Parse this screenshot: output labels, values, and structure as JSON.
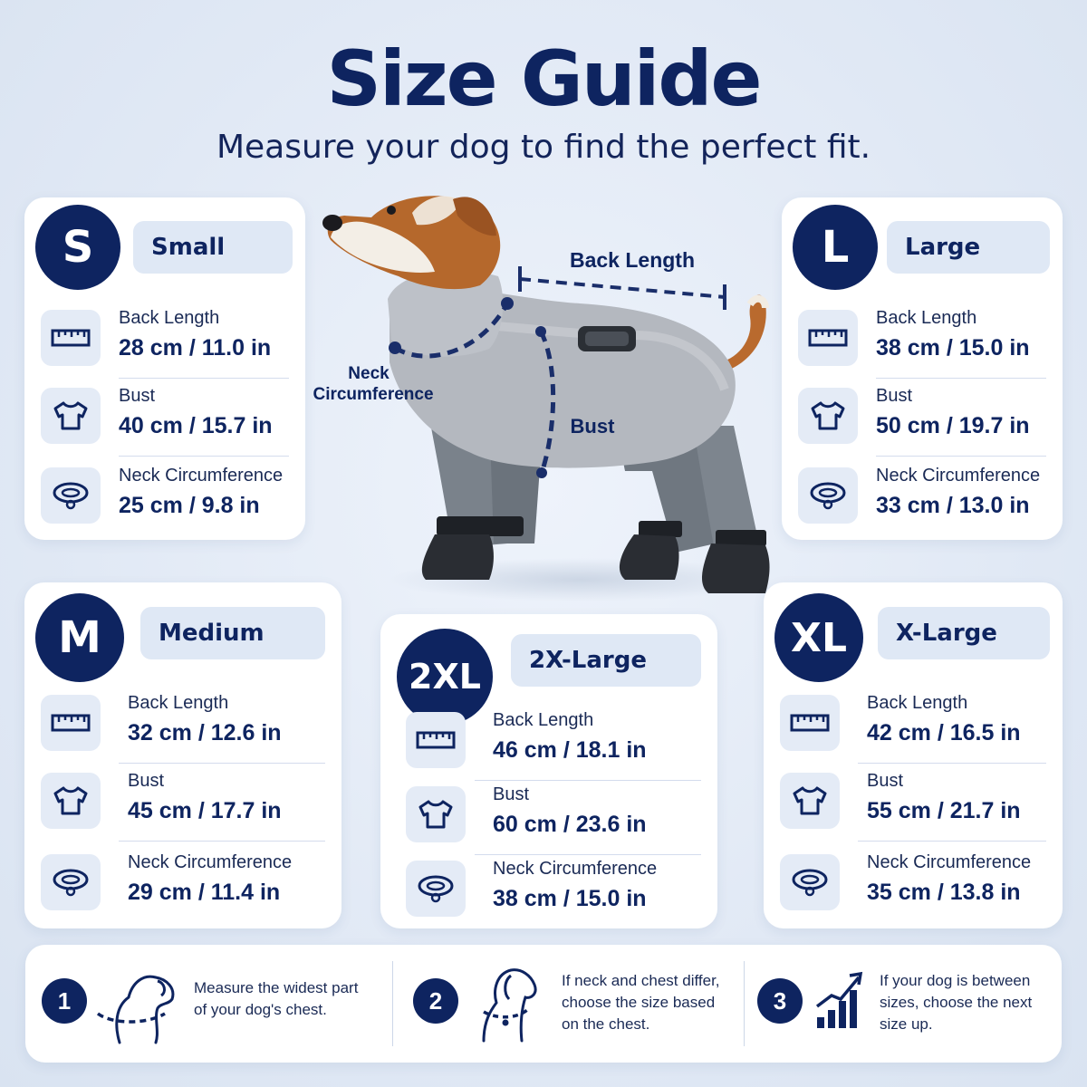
{
  "header": {
    "title": "Size Guide",
    "subtitle": "Measure your dog to find the perfect fit."
  },
  "diagram": {
    "back_length": "Back Length",
    "neck": "Neck",
    "circumference": "Circumference",
    "bust": "Bust"
  },
  "sizes": {
    "s": {
      "code": "S",
      "name": "Small",
      "back_label": "Back Length",
      "back": "28 cm / 11.0 in",
      "bust_label": "Bust",
      "bust": "40 cm / 15.7 in",
      "neck_label": "Neck Circumference",
      "neck": "25 cm / 9.8 in"
    },
    "l": {
      "code": "L",
      "name": "Large",
      "back_label": "Back Length",
      "back": "38 cm / 15.0 in",
      "bust_label": "Bust",
      "bust": "50 cm / 19.7 in",
      "neck_label": "Neck Circumference",
      "neck": "33 cm / 13.0 in"
    },
    "m": {
      "code": "M",
      "name": "Medium",
      "back_label": "Back Length",
      "back": "32 cm / 12.6 in",
      "bust_label": "Bust",
      "bust": "45 cm / 17.7 in",
      "neck_label": "Neck Circumference",
      "neck": "29 cm / 11.4 in"
    },
    "xxl": {
      "code": "2XL",
      "name": "2X-Large",
      "back_label": "Back Length",
      "back": "46 cm / 18.1 in",
      "bust_label": "Bust",
      "bust": "60 cm / 23.6 in",
      "neck_label": "Neck Circumference",
      "neck": "38 cm / 15.0 in"
    },
    "xl": {
      "code": "XL",
      "name": "X-Large",
      "back_label": "Back Length",
      "back": "42 cm / 16.5 in",
      "bust_label": "Bust",
      "bust": "55 cm / 21.7 in",
      "neck_label": "Neck Circumference",
      "neck": "35 cm / 13.8 in"
    }
  },
  "icons": {
    "back": "ruler-icon",
    "bust": "shirt-icon",
    "neck": "collar-icon"
  },
  "tips": [
    {
      "num": "1",
      "text": "Measure the widest part of your dog's chest."
    },
    {
      "num": "2",
      "text": "If neck and chest differ, choose the size based on the chest."
    },
    {
      "num": "3",
      "text": "If your dog is between sizes, choose the next size up."
    }
  ],
  "colors": {
    "navy": "#0e2460",
    "pill": "#dfe8f5",
    "icon_bg": "#e4ebf6",
    "background": "#e4ecf6"
  }
}
